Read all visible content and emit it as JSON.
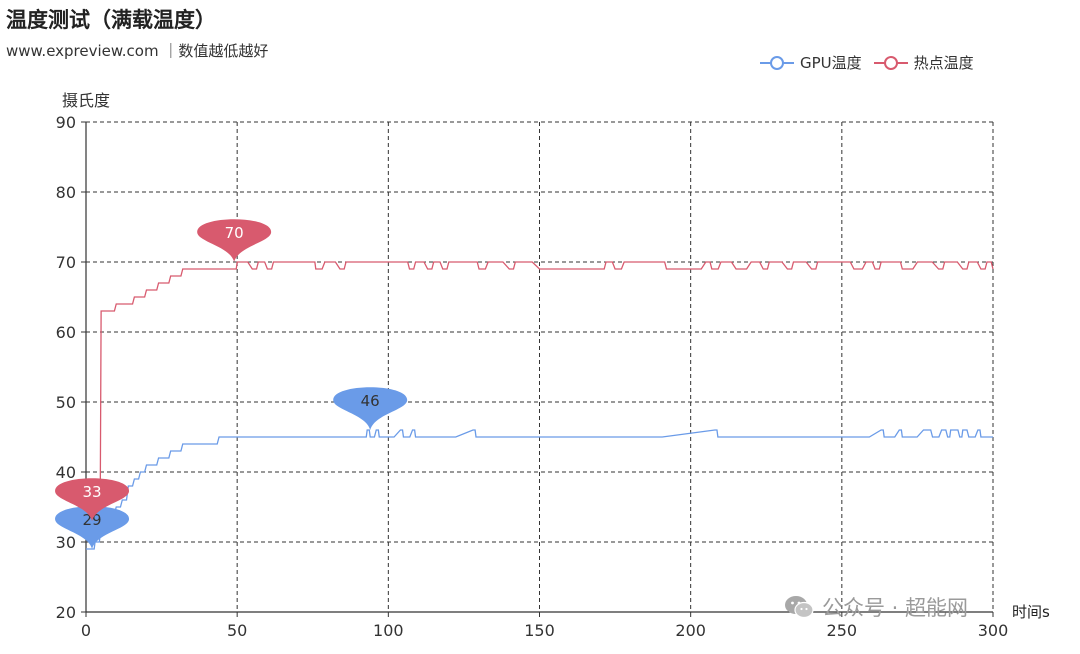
{
  "header": {
    "title": "温度测试（满载温度）",
    "subtitle": "www.expreview.com ｜数值越低越好"
  },
  "watermark": {
    "text": "公众号 · 超能网",
    "icon": "wechat-icon"
  },
  "colors": {
    "gpu": "#6a9be8",
    "hotspot": "#d85a6e",
    "grid": "#333333",
    "axis": "#333333"
  },
  "chart_data": {
    "type": "line",
    "title": "温度测试（满载温度）",
    "subtitle": "www.expreview.com ｜数值越低越好",
    "xlabel": "时间s",
    "ylabel": "摄氏度",
    "xlim": [
      0,
      300
    ],
    "ylim": [
      20,
      90
    ],
    "xticks": [
      0,
      50,
      100,
      150,
      200,
      250,
      300
    ],
    "yticks": [
      20,
      30,
      40,
      50,
      60,
      70,
      80,
      90
    ],
    "grid": true,
    "legend_position": "top-right",
    "series": [
      {
        "name": "GPU温度",
        "color": "#6a9be8",
        "points": [
          [
            0,
            29
          ],
          [
            2,
            29
          ],
          [
            3,
            30
          ],
          [
            5,
            32
          ],
          [
            6,
            33
          ],
          [
            8,
            34
          ],
          [
            10,
            35
          ],
          [
            12,
            36
          ],
          [
            14,
            38
          ],
          [
            16,
            39
          ],
          [
            18,
            40
          ],
          [
            20,
            41
          ],
          [
            22,
            41
          ],
          [
            24,
            42
          ],
          [
            26,
            42
          ],
          [
            28,
            43
          ],
          [
            30,
            43
          ],
          [
            32,
            44
          ],
          [
            34,
            44
          ],
          [
            38,
            44
          ],
          [
            42,
            44
          ],
          [
            44,
            45
          ],
          [
            60,
            45
          ],
          [
            80,
            45
          ],
          [
            92,
            45
          ],
          [
            93,
            46
          ],
          [
            94,
            45
          ],
          [
            96,
            46
          ],
          [
            97,
            45
          ],
          [
            104,
            46
          ],
          [
            105,
            45
          ],
          [
            108,
            46
          ],
          [
            109,
            45
          ],
          [
            128,
            46
          ],
          [
            129,
            45
          ],
          [
            150,
            45
          ],
          [
            208,
            46
          ],
          [
            209,
            45
          ],
          [
            250,
            45
          ],
          [
            263,
            46
          ],
          [
            264,
            45
          ],
          [
            269,
            46
          ],
          [
            270,
            45
          ],
          [
            277,
            46
          ],
          [
            278,
            46
          ],
          [
            280,
            45
          ],
          [
            283,
            46
          ],
          [
            285,
            45
          ],
          [
            286,
            46
          ],
          [
            287,
            46
          ],
          [
            289,
            45
          ],
          [
            290,
            46
          ],
          [
            292,
            45
          ],
          [
            295,
            46
          ],
          [
            296,
            45
          ],
          [
            300,
            45
          ]
        ],
        "markers": [
          {
            "label": "29",
            "x": 2,
            "y": 29
          },
          {
            "label": "46",
            "x": 94,
            "y": 46
          }
        ]
      },
      {
        "name": "热点温度",
        "color": "#d85a6e",
        "points": [
          [
            0,
            33
          ],
          [
            2,
            33
          ],
          [
            4,
            35
          ],
          [
            5,
            63
          ],
          [
            8,
            63
          ],
          [
            10,
            64
          ],
          [
            14,
            64
          ],
          [
            16,
            65
          ],
          [
            18,
            65
          ],
          [
            20,
            66
          ],
          [
            22,
            66
          ],
          [
            24,
            67
          ],
          [
            26,
            67
          ],
          [
            28,
            68
          ],
          [
            30,
            68
          ],
          [
            32,
            69
          ],
          [
            40,
            69
          ],
          [
            49,
            69
          ],
          [
            50,
            70
          ],
          [
            55,
            69
          ],
          [
            57,
            70
          ],
          [
            60,
            69
          ],
          [
            62,
            70
          ],
          [
            75,
            70
          ],
          [
            76,
            69
          ],
          [
            79,
            70
          ],
          [
            84,
            69
          ],
          [
            86,
            70
          ],
          [
            105,
            70
          ],
          [
            107,
            69
          ],
          [
            109,
            70
          ],
          [
            113,
            69
          ],
          [
            115,
            70
          ],
          [
            118,
            69
          ],
          [
            120,
            70
          ],
          [
            128,
            70
          ],
          [
            130,
            69
          ],
          [
            133,
            70
          ],
          [
            140,
            69
          ],
          [
            142,
            70
          ],
          [
            150,
            69
          ],
          [
            170,
            69
          ],
          [
            172,
            70
          ],
          [
            175,
            69
          ],
          [
            178,
            70
          ],
          [
            190,
            70
          ],
          [
            192,
            69
          ],
          [
            200,
            69
          ],
          [
            205,
            70
          ],
          [
            207,
            69
          ],
          [
            210,
            70
          ],
          [
            215,
            69
          ],
          [
            220,
            70
          ],
          [
            224,
            69
          ],
          [
            226,
            70
          ],
          [
            232,
            69
          ],
          [
            234,
            70
          ],
          [
            240,
            69
          ],
          [
            242,
            70
          ],
          [
            250,
            70
          ],
          [
            254,
            69
          ],
          [
            258,
            70
          ],
          [
            261,
            69
          ],
          [
            263,
            70
          ],
          [
            268,
            70
          ],
          [
            270,
            69
          ],
          [
            275,
            70
          ],
          [
            282,
            69
          ],
          [
            284,
            70
          ],
          [
            290,
            69
          ],
          [
            292,
            70
          ],
          [
            296,
            69
          ],
          [
            298,
            70
          ],
          [
            300,
            69
          ]
        ],
        "markers": [
          {
            "label": "33",
            "x": 2,
            "y": 33
          },
          {
            "label": "70",
            "x": 49,
            "y": 70
          }
        ]
      }
    ]
  }
}
